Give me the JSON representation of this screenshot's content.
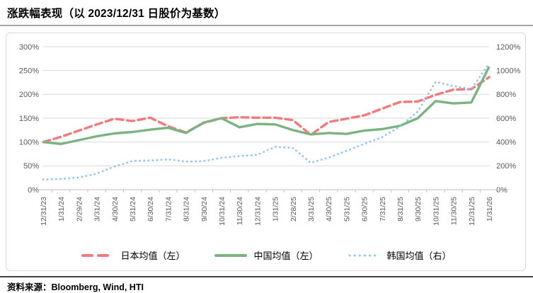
{
  "title": "涨跌幅表现（以 2023/12/31 日股价为基数）",
  "source": {
    "label": "资料来源：",
    "value": "Bloomberg, Wind, HTI"
  },
  "colors": {
    "japan": "#f4797d",
    "china": "#7bb480",
    "korea": "#8fc3f1",
    "gridline": "#d9d9d9",
    "axis_line": "#bfbfbf",
    "axis_text": "#595959",
    "title_rule": "#a6a6a6",
    "footer_rule": "#404040",
    "frame_border": "#d9d9d9"
  },
  "chart_data": {
    "type": "line",
    "grid": true,
    "legend_position": "bottom",
    "categories": [
      "12/31/23",
      "1/31/24",
      "2/29/24",
      "3/31/24",
      "4/30/24",
      "5/31/24",
      "6/30/24",
      "7/31/24",
      "8/31/24",
      "9/30/24",
      "10/31/24",
      "11/30/24",
      "12/31/24",
      "1/31/25",
      "2/28/25",
      "3/31/25",
      "4/30/25",
      "5/31/25",
      "6/30/25",
      "7/31/25",
      "8/31/25",
      "9/30/25",
      "10/31/25",
      "11/30/25",
      "12/31/25",
      "1/31/26"
    ],
    "left_axis": {
      "min": 0,
      "max": 300,
      "step": 50,
      "format": "percent",
      "ticks_top_down": [
        "300%",
        "250%",
        "200%",
        "150%",
        "100%",
        "50%",
        "0%"
      ]
    },
    "right_axis": {
      "min": 0,
      "max": 1200,
      "step": 200,
      "format": "percent",
      "ticks_top_down": [
        "1200%",
        "1000%",
        "800%",
        "600%",
        "400%",
        "200%",
        "0%"
      ]
    },
    "series": [
      {
        "name": "日本均值（左）",
        "axis": "left",
        "style": "dashed",
        "color": "#f4797d",
        "values": [
          100,
          111,
          124,
          137,
          149,
          144,
          151,
          133,
          120,
          140,
          150,
          152,
          151,
          151,
          146,
          115,
          142,
          149,
          156,
          170,
          184,
          185,
          199,
          210,
          211,
          236
        ]
      },
      {
        "name": "中国均值（左）",
        "axis": "left",
        "style": "solid",
        "color": "#7bb480",
        "values": [
          100,
          96,
          104,
          112,
          118,
          121,
          126,
          130,
          119,
          141,
          150,
          131,
          138,
          137,
          125,
          116,
          119,
          117,
          124,
          127,
          134,
          150,
          186,
          181,
          183,
          258
        ]
      },
      {
        "name": "韩国均值（右）",
        "axis": "right",
        "style": "dotted",
        "color": "#8fc3f1",
        "values": [
          85,
          90,
          102,
          135,
          195,
          240,
          245,
          255,
          235,
          240,
          268,
          282,
          292,
          360,
          350,
          225,
          270,
          325,
          385,
          440,
          530,
          655,
          905,
          870,
          845,
          1060
        ]
      }
    ]
  }
}
